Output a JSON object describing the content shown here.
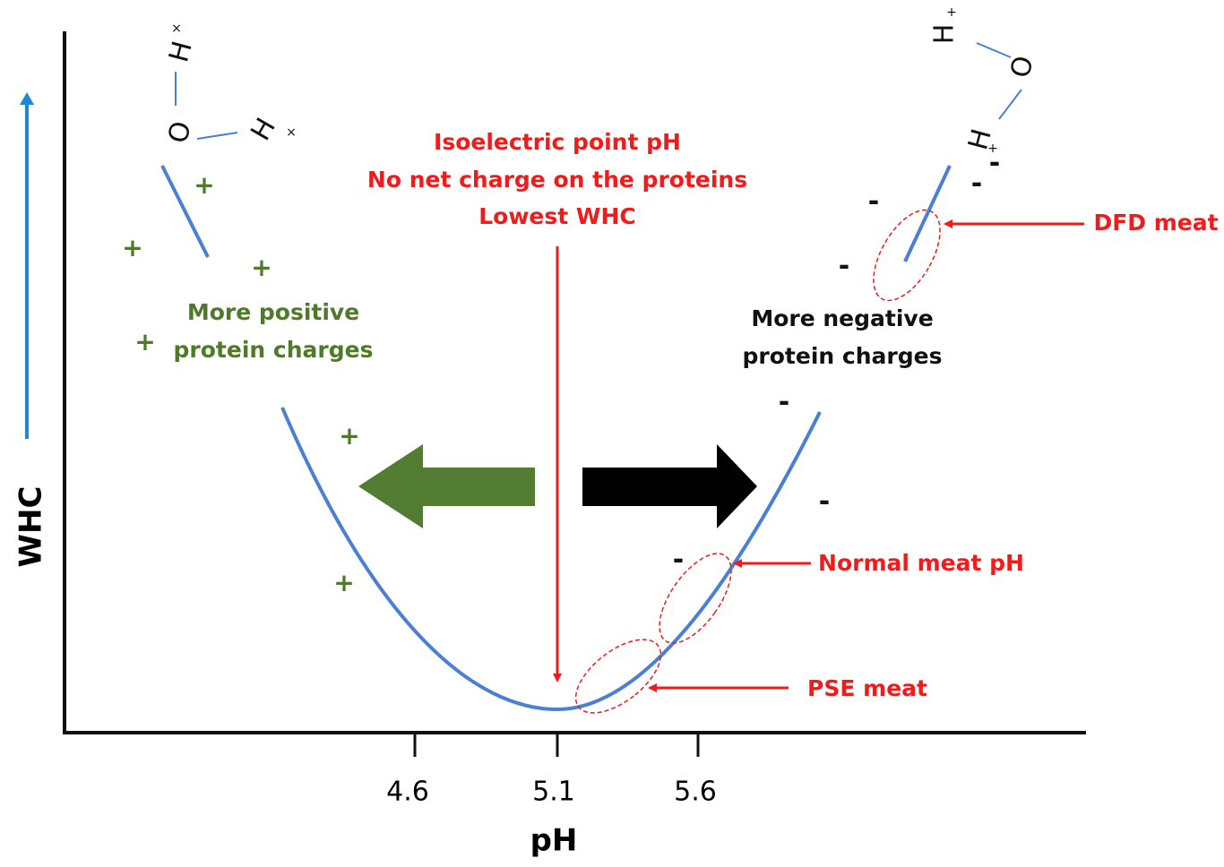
{
  "axes": {
    "y_label": "WHC",
    "x_label": "pH",
    "x_ticks": [
      "4.6",
      "5.1",
      "5.6"
    ]
  },
  "annotations": {
    "isoelectric": [
      "Isoelectric point pH",
      "No net charge on the proteins",
      "Lowest WHC"
    ],
    "positive": [
      "More positive",
      "protein charges"
    ],
    "negative": [
      "More negative",
      "protein charges"
    ],
    "dfd": "DFD meat",
    "normal": "Normal meat pH",
    "pse": "PSE meat"
  },
  "charges": {
    "plus": "+",
    "minus": "-"
  },
  "molecules": {
    "hydrogen": "H",
    "oxygen": "O",
    "cation_mark": "+",
    "x_mark": "×"
  }
}
